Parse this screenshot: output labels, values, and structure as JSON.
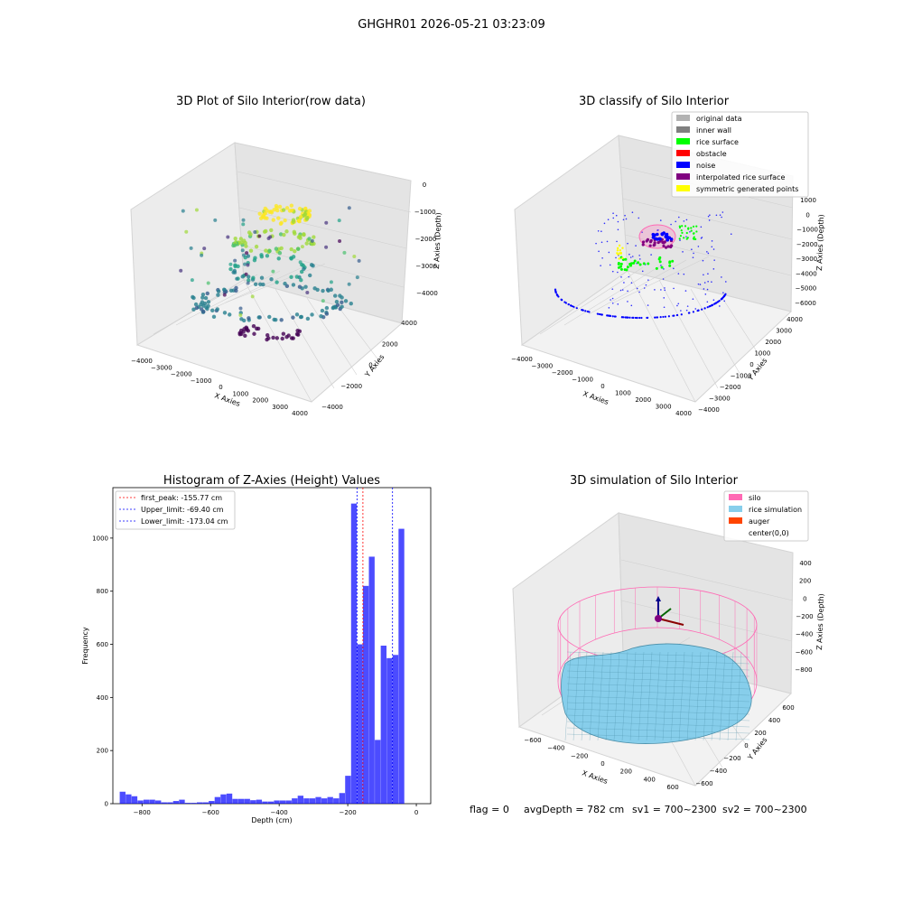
{
  "figure_title": "GHGHR01 2026-05-21 03:23:09",
  "chart_data": [
    {
      "id": "raw",
      "type": "scatter3d",
      "title": "3D Plot of Silo Interior(row data)",
      "xlabel": "X Axies",
      "ylabel": "Y Axies",
      "zlabel": "Z Axies (Depth)",
      "x_ticks": [
        "−4000",
        "−3000",
        "−2000",
        "−1000",
        "0",
        "1000",
        "2000",
        "3000",
        "4000"
      ],
      "y_ticks": [
        "−4000",
        "−2000",
        "0",
        "2000",
        "4000"
      ],
      "z_ticks": [
        "−4000",
        "−3000",
        "−2000",
        "−1000",
        "0"
      ],
      "colormap": "viridis"
    },
    {
      "id": "classify",
      "type": "scatter3d",
      "title": "3D classify of Silo Interior",
      "xlabel": "X Axies",
      "ylabel": "Y Axies",
      "zlabel": "Z Axies (Depth)",
      "x_ticks": [
        "−4000",
        "−3000",
        "−2000",
        "−1000",
        "0",
        "1000",
        "2000",
        "3000",
        "4000"
      ],
      "y_ticks": [
        "−4000",
        "−3000",
        "−2000",
        "−1000",
        "0",
        "1000",
        "2000",
        "3000",
        "4000"
      ],
      "z_ticks": [
        "−6000",
        "−5000",
        "−4000",
        "−3000",
        "−2000",
        "−1000",
        "0",
        "1000"
      ],
      "legend": [
        {
          "label": "original data",
          "color": "#b2b2b2"
        },
        {
          "label": "inner wall",
          "color": "#808080"
        },
        {
          "label": "rice surface",
          "color": "#00ff00"
        },
        {
          "label": "obstacle",
          "color": "#ff0000"
        },
        {
          "label": "noise",
          "color": "#0000ff"
        },
        {
          "label": "interpolated rice surface",
          "color": "#800080"
        },
        {
          "label": "symmetric generated points",
          "color": "#ffff00"
        }
      ]
    },
    {
      "id": "hist",
      "type": "bar",
      "title": "Histogram of Z-Axies (Height) Values",
      "xlabel": "Depth (cm)",
      "ylabel": "Frequency",
      "xlim": [
        -885,
        42
      ],
      "ylim": [
        0,
        1190
      ],
      "x_ticks": [
        -800,
        -600,
        -400,
        -200,
        0
      ],
      "x_tick_labels": [
        "−800",
        "−600",
        "−400",
        "−200",
        "0"
      ],
      "y_ticks": [
        0,
        200,
        400,
        600,
        800,
        1000
      ],
      "bin_start": -865,
      "bin_width": 17.3,
      "color": "#0000ff",
      "values": [
        45,
        35,
        28,
        12,
        15,
        15,
        12,
        5,
        5,
        10,
        15,
        3,
        3,
        5,
        5,
        10,
        25,
        35,
        38,
        18,
        18,
        18,
        13,
        15,
        8,
        8,
        12,
        12,
        12,
        20,
        30,
        20,
        20,
        25,
        20,
        25,
        20,
        40,
        105,
        1130,
        600,
        820,
        930,
        240,
        595,
        548,
        560,
        1035
      ],
      "vlines": [
        {
          "label": "first_peak: -155.77 cm",
          "x": -155.77,
          "color": "#ff0000"
        },
        {
          "label": "Upper_limit: -69.40 cm",
          "x": -69.4,
          "color": "#0000ff"
        },
        {
          "label": "Lower_limit: -173.04 cm",
          "x": -173.04,
          "color": "#0000ff"
        }
      ]
    },
    {
      "id": "simulation",
      "type": "surface3d",
      "title": "3D simulation of Silo Interior",
      "xlabel": "X Axies",
      "ylabel": "Y Axies",
      "zlabel": "Z Axies (Depth)",
      "x_ticks": [
        "−600",
        "−400",
        "−200",
        "0",
        "200",
        "400",
        "600"
      ],
      "y_ticks": [
        "−600",
        "−400",
        "−200",
        "0",
        "200",
        "400",
        "600"
      ],
      "z_ticks": [
        "−800",
        "−600",
        "−400",
        "−200",
        "0",
        "200",
        "400"
      ],
      "legend": [
        {
          "label": "silo",
          "color": "#ff69b4"
        },
        {
          "label": "rice simulation",
          "color": "#87ceeb"
        },
        {
          "label": "auger",
          "color": "#ff4500"
        },
        {
          "label": "center(0,0)",
          "color": ""
        }
      ]
    }
  ],
  "footer": {
    "flag": "flag = 0",
    "avg_depth": "avgDepth = 782 cm",
    "sv1": "sv1 = 700~2300",
    "sv2": "sv2 = 700~2300"
  }
}
